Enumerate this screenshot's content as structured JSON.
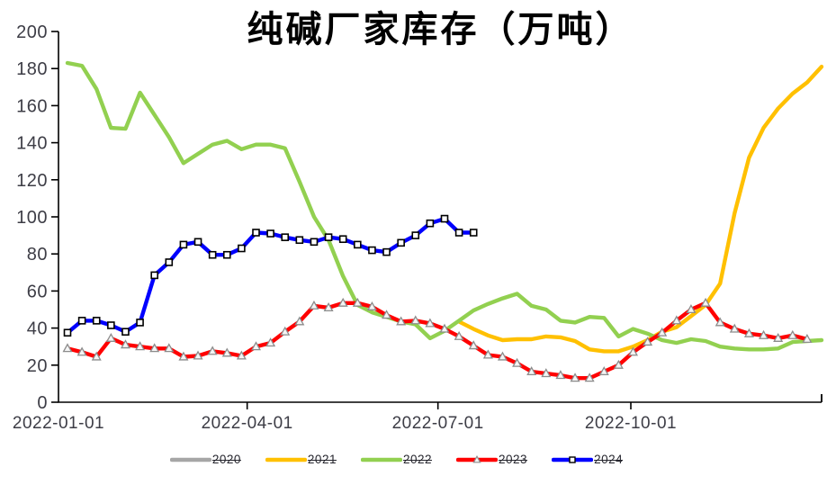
{
  "chart_data": {
    "type": "line",
    "title": "纯碱厂家库存（万吨）",
    "subtitle": "",
    "legend_position": "bottom",
    "grid": false,
    "axis_color": "#000000",
    "tick_label_color": "#3d3d46",
    "x_unit": "weekly points overlaid on 2022 calendar axis",
    "x_axis": {
      "range_days": [
        0,
        364
      ],
      "ticks": [
        {
          "label": "2022-01-01",
          "day": 0
        },
        {
          "label": "2022-04-01",
          "day": 90
        },
        {
          "label": "2022-07-01",
          "day": 181
        },
        {
          "label": "2022-10-01",
          "day": 273
        }
      ],
      "end_tick_day": 364
    },
    "y_axis": {
      "min": 0,
      "max": 200,
      "tick_step": 20,
      "ticks": [
        0,
        20,
        40,
        60,
        80,
        100,
        120,
        140,
        160,
        180,
        200
      ]
    },
    "series": [
      {
        "name": "2020",
        "color": "#A6A6A6",
        "marker": "none",
        "start_week": 0,
        "values": [],
        "note": "in legend only, no visible line in plot"
      },
      {
        "name": "2021",
        "color": "#FFC000",
        "marker": "none",
        "start_week": 27,
        "values": [
          43.5,
          39.5,
          36,
          33.5,
          34,
          34,
          35.5,
          35,
          33,
          28.5,
          27.5,
          27.5,
          30,
          33.5,
          38,
          40.5,
          46.5,
          52.5,
          64,
          102,
          132,
          148,
          158.5,
          166.5,
          172.5,
          181
        ]
      },
      {
        "name": "2022",
        "color": "#92D050",
        "marker": "none",
        "start_week": 0,
        "values": [
          183,
          181.5,
          169,
          148,
          147.5,
          167,
          155,
          143,
          129,
          134,
          139,
          141,
          136.5,
          139,
          139,
          137,
          119,
          100,
          87.5,
          68,
          52.5,
          48.5,
          46,
          43.5,
          42,
          34.5,
          38.5,
          44,
          49.5,
          53,
          56,
          58.5,
          52,
          50,
          44,
          43,
          46,
          45.5,
          35.5,
          39.5,
          37,
          33.5,
          32,
          34,
          33,
          30,
          29,
          28.5,
          28.5,
          29,
          32.5,
          33,
          33.5
        ]
      },
      {
        "name": "2023",
        "color": "#FF0000",
        "marker": "triangle",
        "start_week": 0,
        "values": [
          29,
          27,
          24.5,
          34.5,
          31,
          30,
          29,
          29,
          24.5,
          25,
          27.5,
          26.5,
          25,
          30,
          32,
          38,
          43.5,
          52,
          51,
          53.5,
          53.5,
          51.5,
          47,
          43.5,
          44,
          42.5,
          39.5,
          35.5,
          30.5,
          25.5,
          24.5,
          21,
          16.5,
          15.5,
          14.5,
          13,
          13,
          16.5,
          20,
          27,
          32.5,
          37.5,
          44,
          50,
          53.5,
          43,
          39.5,
          37,
          36,
          34.5,
          36,
          34
        ]
      },
      {
        "name": "2024",
        "color": "#0000FF",
        "marker": "square",
        "start_week": 0,
        "values": [
          37.5,
          44,
          44,
          41.5,
          38,
          43,
          68.5,
          75.5,
          85,
          86.5,
          79.5,
          79.5,
          83,
          91.5,
          91,
          89,
          87.5,
          86.5,
          89,
          88,
          85,
          82,
          81,
          86,
          90,
          96.5,
          99,
          91.5,
          91.5
        ]
      }
    ]
  }
}
